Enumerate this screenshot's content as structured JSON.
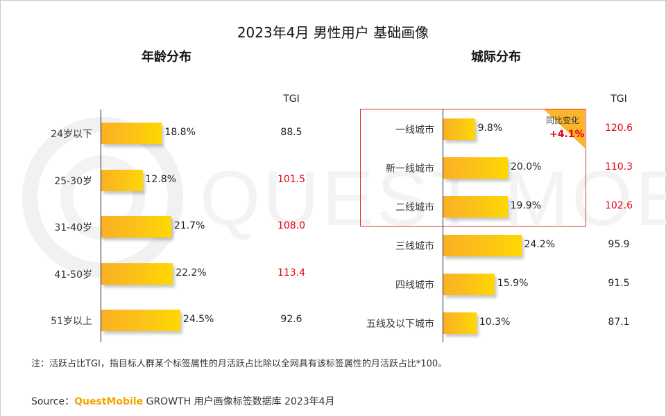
{
  "title": "2023年4月 男性用户 基础画像",
  "colors": {
    "bar_start": "#fbb024",
    "bar_end": "#fed800",
    "highlight": "#e60012",
    "normal": "#222222",
    "brand": "#f5a100",
    "box": "#d9342b"
  },
  "chart_data": [
    {
      "type": "bar",
      "orientation": "horizontal",
      "title": "年龄分布",
      "tgi_header": "TGI",
      "categories": [
        "24岁以下",
        "25-30岁",
        "31-40岁",
        "41-50岁",
        "51岁以上"
      ],
      "values": [
        18.8,
        12.8,
        21.7,
        22.2,
        24.5
      ],
      "value_labels": [
        "18.8%",
        "12.8%",
        "21.7%",
        "22.2%",
        "24.5%"
      ],
      "tgi": [
        "88.5",
        "101.5",
        "108.0",
        "113.4",
        "92.6"
      ],
      "tgi_highlight": [
        false,
        true,
        true,
        true,
        false
      ],
      "unit": "%"
    },
    {
      "type": "bar",
      "orientation": "horizontal",
      "title": "城际分布",
      "tgi_header": "TGI",
      "categories": [
        "一线城市",
        "新一线城市",
        "二线城市",
        "三线城市",
        "四线城市",
        "五线及以下城市"
      ],
      "values": [
        9.8,
        20.0,
        19.9,
        24.2,
        15.9,
        10.3
      ],
      "value_labels": [
        "9.8%",
        "20.0%",
        "19.9%",
        "24.2%",
        "15.9%",
        "10.3%"
      ],
      "tgi": [
        "120.6",
        "110.3",
        "102.6",
        "95.9",
        "91.5",
        "87.1"
      ],
      "tgi_highlight": [
        true,
        true,
        true,
        false,
        false,
        false
      ],
      "unit": "%",
      "annotation": {
        "label": "同比变化",
        "value": "+4.1%"
      }
    }
  ],
  "note": "注：活跃占比TGI，指目标人群某个标签属性的月活跃占比除以全网具有该标签属性的月活跃占比*100。",
  "source": {
    "prefix": "Source：",
    "brand": "QuestMobile",
    "text": " GROWTH 用户画像标签数据库 2023年4月"
  },
  "watermark": "QUEST MOBILE"
}
